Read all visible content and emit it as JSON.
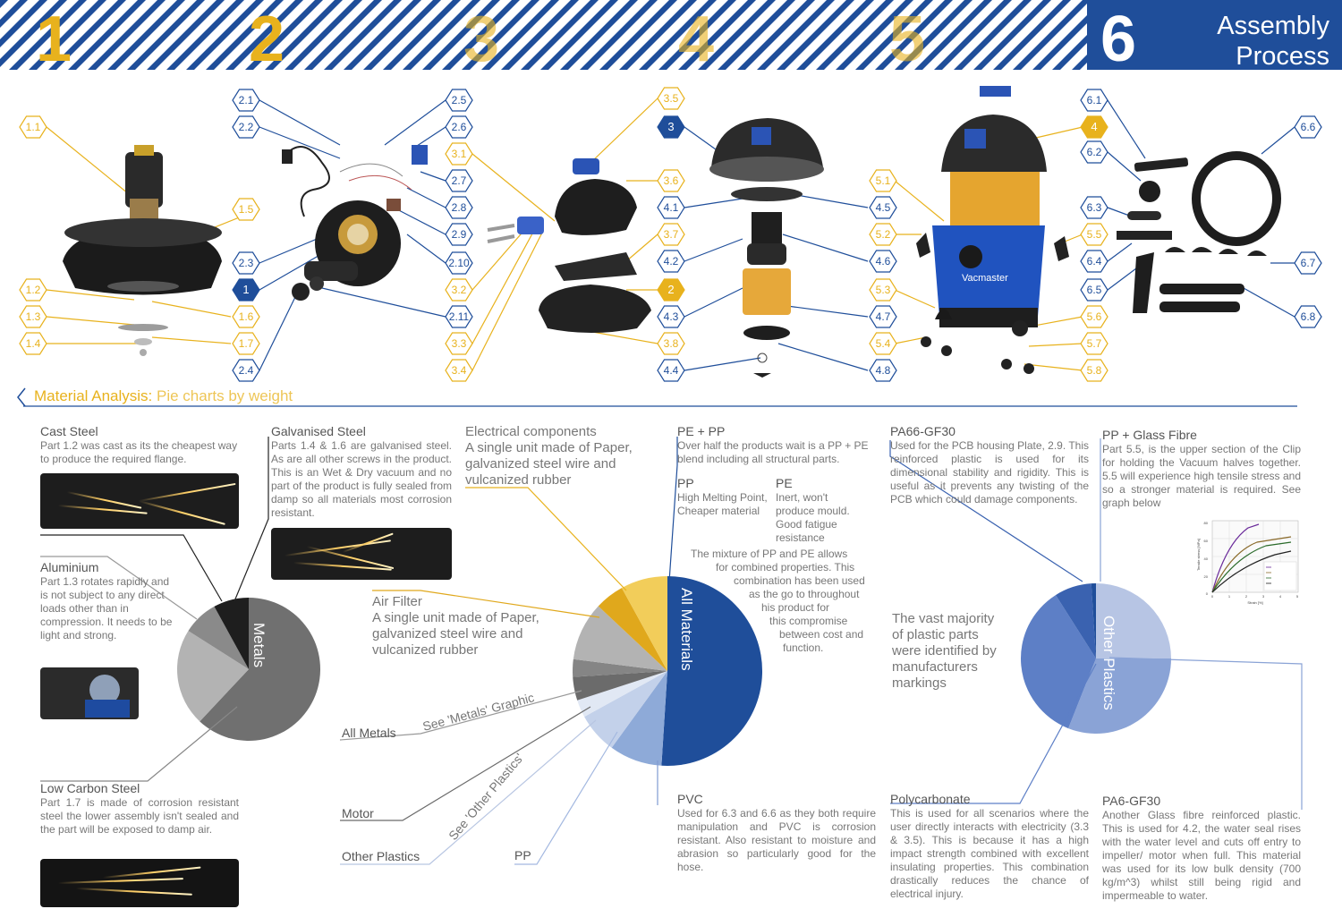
{
  "header": {
    "steps": [
      "1",
      "2",
      "3",
      "4",
      "5",
      "6"
    ],
    "title_line1": "Assembly",
    "title_line2": "Process",
    "colors": {
      "blue": "#1f4e9a",
      "yellow": "#e8b21d"
    }
  },
  "callouts": {
    "p1_1": "1.1",
    "p1_2": "1.2",
    "p1_3": "1.3",
    "p1_4": "1.4",
    "p1_5": "1.5",
    "p1_6": "1.6",
    "p1_7": "1.7",
    "p2_1": "2.1",
    "p2_2": "2.2",
    "p2_3": "2.3",
    "p2_4": "2.4",
    "p2_5": "2.5",
    "p2_6": "2.6",
    "p2_7": "2.7",
    "p2_8": "2.8",
    "p2_9": "2.9",
    "p2_10": "2.10",
    "p2_11": "2.11",
    "p3_1": "3.1",
    "p3_2": "3.2",
    "p3_3": "3.3",
    "p3_4": "3.4",
    "p3_5": "3.5",
    "p3_6": "3.6",
    "p3_7": "3.7",
    "p3_8": "3.8",
    "p4_1": "4.1",
    "p4_2": "4.2",
    "p4_3": "4.3",
    "p4_4": "4.4",
    "p4_5": "4.5",
    "p4_6": "4.6",
    "p4_7": "4.7",
    "p4_8": "4.8",
    "p5_1": "5.1",
    "p5_2": "5.2",
    "p5_3": "5.3",
    "p5_4": "5.4",
    "p5_5": "5.5",
    "p5_6": "5.6",
    "p5_7": "5.7",
    "p5_8": "5.8",
    "p6_1": "6.1",
    "p6_2": "6.2",
    "p6_3": "6.3",
    "p6_4": "6.4",
    "p6_5": "6.5",
    "p6_6": "6.6",
    "p6_7": "6.7",
    "p6_8": "6.8",
    "sub1": "1",
    "sub2": "2",
    "sub3": "3",
    "sub4": "4"
  },
  "brand_label": "Vacmaster",
  "section": {
    "title": "Material Analysis:",
    "subtitle": "Pie charts by weight"
  },
  "metals": {
    "pie_label": "Metals",
    "cast_steel": {
      "title": "Cast Steel",
      "text": "Part 1.2 was cast as its the cheapest way to produce the required flange."
    },
    "galvanised_steel": {
      "title": "Galvanised Steel",
      "text": "Parts 1.4 & 1.6 are galvanised steel. As are all other screws in the product. This is an Wet & Dry vacuum and no part of the product is fully sealed from damp so all materials most corrosion resistant."
    },
    "aluminium": {
      "title": "Aluminium",
      "text": "Part 1.3 rotates rapidly and is not subject to any direct loads other than in compression. It needs to be light and strong."
    },
    "low_carbon_steel": {
      "title": "Low Carbon Steel",
      "text": "Part 1.7 is made of corrosion resistant steel the lower assembly isn't sealed and the part will be exposed to damp air."
    }
  },
  "all_materials": {
    "pie_label": "All Materials",
    "electrical": {
      "title": "Electrical components",
      "text": "A single unit made of Paper, galvanized steel wire and vulcanized rubber"
    },
    "air_filter": {
      "title": "Air Filter",
      "text": "A single unit made of Paper, galvanized steel wire and vulcanized rubber"
    },
    "pe_pp": {
      "title": "PE + PP",
      "text": "Over half the products wait is a PP + PE blend including all structural parts."
    },
    "pp": {
      "title": "PP",
      "text": "High Melting Point, Cheaper material"
    },
    "pe": {
      "title": "PE",
      "text": "Inert, won't produce mould. Good fatigue resistance"
    },
    "mixture": [
      "The mixture of PP and PE allows",
      "for combined properties. This",
      "combination has been used",
      "as the go to throughout",
      "his product for",
      "this compromise",
      "between cost and",
      "function."
    ],
    "all_metals": "All Metals",
    "see_metals": "See 'Metals' Graphic",
    "motor": "Motor",
    "see_other": "See 'Other Plastics'",
    "other_plastics": "Other Plastics",
    "pp_bottom": "PP",
    "pvc": {
      "title": "PVC",
      "text": "Used for 6.3 and 6.6 as they both require manipulation and PVC is corrosion resistant. Also resistant to moisture and abrasion so particularly good for the hose."
    }
  },
  "other_plastics": {
    "pie_label": "Other Plastics",
    "pa66": {
      "title": "PA66-GF30",
      "text": "Used for the PCB housing Plate, 2.9. This reinforced plastic is used for its dimensional stability and rigidity. This is useful as it prevents any twisting of the PCB which could damage components."
    },
    "pp_glass": {
      "title": "PP + Glass Fibre",
      "text": "Part 5.5, is the upper section of the Clip for holding the Vacuum halves together. 5.5 will experience high tensile stress and so a stronger material is required. See graph below"
    },
    "majority": "The vast majority of plastic parts were identified by manufacturers markings",
    "polycarbonate": {
      "title": "Polycarbonate",
      "text": "This is used for all scenarios where the user directly interacts with electricity (3.3 & 3.5). This is because it has a high impact strength combined with excellent insulating properties. This combination drastically reduces the chance of electrical injury."
    },
    "pa6": {
      "title": "PA6-GF30",
      "text": "Another Glass fibre reinforced plastic. This is used for 4.2, the water seal rises with the water level and cuts off entry to impeller/ motor when full. This material was used for its low bulk density (700 kg/m^3) whilst still being rigid and impermeable to water."
    }
  },
  "chart_data": [
    {
      "type": "pie",
      "title": "Metals",
      "slices": [
        {
          "label": "Low Carbon Steel",
          "value": 62,
          "color": "#707070"
        },
        {
          "label": "Aluminium",
          "value": 22,
          "color": "#b3b3b3"
        },
        {
          "label": "Galvanised Steel",
          "value": 8,
          "color": "#8a8a8a"
        },
        {
          "label": "Cast Steel",
          "value": 8,
          "color": "#1e1e1e"
        }
      ]
    },
    {
      "type": "pie",
      "title": "All Materials",
      "slices": [
        {
          "label": "PE + PP",
          "value": 51,
          "color": "#1f4e9a"
        },
        {
          "label": "PVC",
          "value": 9,
          "color": "#8eaad8"
        },
        {
          "label": "Other Plastics",
          "value": 7,
          "color": "#c3d1ea"
        },
        {
          "label": "PP",
          "value": 3,
          "color": "#e1e8f4"
        },
        {
          "label": "Motor",
          "value": 4,
          "color": "#6b6b6b"
        },
        {
          "label": "All Metals",
          "value": 3,
          "color": "#858585"
        },
        {
          "label": "Air Filter",
          "value": 10,
          "color": "#b3b3b3"
        },
        {
          "label": "Electrical components",
          "value": 5,
          "color": "#e0a81c"
        },
        {
          "label": "Electrical components",
          "value": 8,
          "color": "#f2cd5a"
        }
      ]
    },
    {
      "type": "pie",
      "title": "Other Plastics",
      "slices": [
        {
          "label": "PP + Glass Fibre",
          "value": 25,
          "color": "#b7c5e4"
        },
        {
          "label": "PA6-GF30",
          "value": 31,
          "color": "#8aa3d6"
        },
        {
          "label": "Polycarbonate",
          "value": 35,
          "color": "#5d7fc6"
        },
        {
          "label": "PA66-GF30",
          "value": 8,
          "color": "#3a62b0"
        },
        {
          "label": "PP + Glass Fibre",
          "value": 1,
          "color": "#1f4e9a"
        }
      ]
    }
  ],
  "graph": {
    "xlabel": "Strain [%]",
    "ylabel": "Tensile stress [MPa]",
    "y_ticks": [
      "80",
      "60",
      "40",
      "20",
      "0"
    ],
    "x_ticks": [
      "0",
      "1",
      "2",
      "3",
      "4",
      "5"
    ]
  }
}
